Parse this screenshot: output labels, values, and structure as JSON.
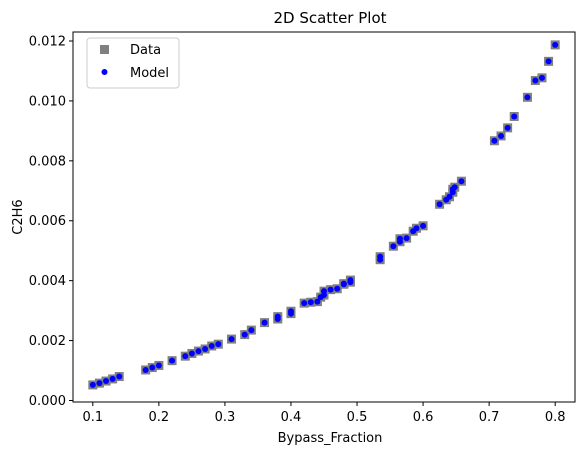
{
  "chart_data": {
    "type": "scatter",
    "title": "2D Scatter Plot",
    "xlabel": "Bypass_Fraction",
    "ylabel": "C2H6",
    "xlim": [
      0.07,
      0.83
    ],
    "ylim": [
      -5e-05,
      0.0123
    ],
    "x_ticks": [
      0.1,
      0.2,
      0.3,
      0.4,
      0.5,
      0.6,
      0.7,
      0.8
    ],
    "x_tick_labels": [
      "0.1",
      "0.2",
      "0.3",
      "0.4",
      "0.5",
      "0.6",
      "0.7",
      "0.8"
    ],
    "y_ticks": [
      0.0,
      0.002,
      0.004,
      0.006,
      0.008,
      0.01,
      0.012
    ],
    "y_tick_labels": [
      "0.000",
      "0.002",
      "0.004",
      "0.006",
      "0.008",
      "0.010",
      "0.012"
    ],
    "grid": false,
    "legend_position": "top-left",
    "series": [
      {
        "name": "Data",
        "marker": "square",
        "color": "#808080",
        "points": [
          [
            0.1,
            0.00052
          ],
          [
            0.11,
            0.00058
          ],
          [
            0.12,
            0.00065
          ],
          [
            0.13,
            0.00072
          ],
          [
            0.14,
            0.0008
          ],
          [
            0.18,
            0.00102
          ],
          [
            0.19,
            0.0011
          ],
          [
            0.2,
            0.00117
          ],
          [
            0.22,
            0.00133
          ],
          [
            0.24,
            0.00148
          ],
          [
            0.25,
            0.00157
          ],
          [
            0.26,
            0.00165
          ],
          [
            0.27,
            0.00172
          ],
          [
            0.28,
            0.00182
          ],
          [
            0.29,
            0.00188
          ],
          [
            0.31,
            0.00205
          ],
          [
            0.33,
            0.0022
          ],
          [
            0.34,
            0.00235
          ],
          [
            0.36,
            0.0026
          ],
          [
            0.38,
            0.00272
          ],
          [
            0.38,
            0.0028
          ],
          [
            0.4,
            0.0029
          ],
          [
            0.4,
            0.00298
          ],
          [
            0.42,
            0.00325
          ],
          [
            0.43,
            0.00328
          ],
          [
            0.44,
            0.0033
          ],
          [
            0.445,
            0.00345
          ],
          [
            0.45,
            0.00352
          ],
          [
            0.45,
            0.00365
          ],
          [
            0.46,
            0.0037
          ],
          [
            0.47,
            0.00373
          ],
          [
            0.48,
            0.00388
          ],
          [
            0.48,
            0.0039
          ],
          [
            0.49,
            0.00395
          ],
          [
            0.49,
            0.00402
          ],
          [
            0.535,
            0.0047
          ],
          [
            0.535,
            0.0048
          ],
          [
            0.555,
            0.00515
          ],
          [
            0.565,
            0.0053
          ],
          [
            0.565,
            0.0054
          ],
          [
            0.575,
            0.00542
          ],
          [
            0.585,
            0.00565
          ],
          [
            0.59,
            0.00575
          ],
          [
            0.6,
            0.00583
          ],
          [
            0.625,
            0.00655
          ],
          [
            0.635,
            0.0067
          ],
          [
            0.64,
            0.0068
          ],
          [
            0.645,
            0.00695
          ],
          [
            0.645,
            0.00705
          ],
          [
            0.648,
            0.00712
          ],
          [
            0.658,
            0.00732
          ],
          [
            0.708,
            0.00867
          ],
          [
            0.718,
            0.00883
          ],
          [
            0.728,
            0.0091
          ],
          [
            0.738,
            0.00948
          ],
          [
            0.758,
            0.01012
          ],
          [
            0.77,
            0.01068
          ],
          [
            0.78,
            0.01077
          ],
          [
            0.79,
            0.01132
          ],
          [
            0.8,
            0.01187
          ]
        ]
      },
      {
        "name": "Model",
        "marker": "circle",
        "color": "#0000ff",
        "points": [
          [
            0.1,
            0.00052
          ],
          [
            0.11,
            0.00058
          ],
          [
            0.12,
            0.00065
          ],
          [
            0.13,
            0.00072
          ],
          [
            0.14,
            0.0008
          ],
          [
            0.18,
            0.00102
          ],
          [
            0.19,
            0.0011
          ],
          [
            0.2,
            0.00117
          ],
          [
            0.22,
            0.00133
          ],
          [
            0.24,
            0.00148
          ],
          [
            0.25,
            0.00157
          ],
          [
            0.26,
            0.00165
          ],
          [
            0.27,
            0.00172
          ],
          [
            0.28,
            0.00182
          ],
          [
            0.29,
            0.00188
          ],
          [
            0.31,
            0.00205
          ],
          [
            0.33,
            0.0022
          ],
          [
            0.34,
            0.00235
          ],
          [
            0.36,
            0.0026
          ],
          [
            0.38,
            0.00272
          ],
          [
            0.38,
            0.0028
          ],
          [
            0.4,
            0.0029
          ],
          [
            0.4,
            0.00298
          ],
          [
            0.42,
            0.00325
          ],
          [
            0.43,
            0.00328
          ],
          [
            0.44,
            0.0033
          ],
          [
            0.445,
            0.00345
          ],
          [
            0.45,
            0.00352
          ],
          [
            0.45,
            0.00365
          ],
          [
            0.46,
            0.0037
          ],
          [
            0.47,
            0.00373
          ],
          [
            0.48,
            0.00388
          ],
          [
            0.48,
            0.0039
          ],
          [
            0.49,
            0.00395
          ],
          [
            0.49,
            0.00402
          ],
          [
            0.535,
            0.0047
          ],
          [
            0.535,
            0.0048
          ],
          [
            0.555,
            0.00515
          ],
          [
            0.565,
            0.0053
          ],
          [
            0.565,
            0.0054
          ],
          [
            0.575,
            0.00542
          ],
          [
            0.585,
            0.00565
          ],
          [
            0.59,
            0.00575
          ],
          [
            0.6,
            0.00583
          ],
          [
            0.625,
            0.00655
          ],
          [
            0.635,
            0.0067
          ],
          [
            0.64,
            0.0068
          ],
          [
            0.645,
            0.00695
          ],
          [
            0.645,
            0.00705
          ],
          [
            0.648,
            0.00712
          ],
          [
            0.658,
            0.00732
          ],
          [
            0.708,
            0.00867
          ],
          [
            0.718,
            0.00883
          ],
          [
            0.728,
            0.0091
          ],
          [
            0.738,
            0.00948
          ],
          [
            0.758,
            0.01012
          ],
          [
            0.77,
            0.01068
          ],
          [
            0.78,
            0.01077
          ],
          [
            0.79,
            0.01132
          ],
          [
            0.8,
            0.01187
          ]
        ]
      }
    ]
  }
}
